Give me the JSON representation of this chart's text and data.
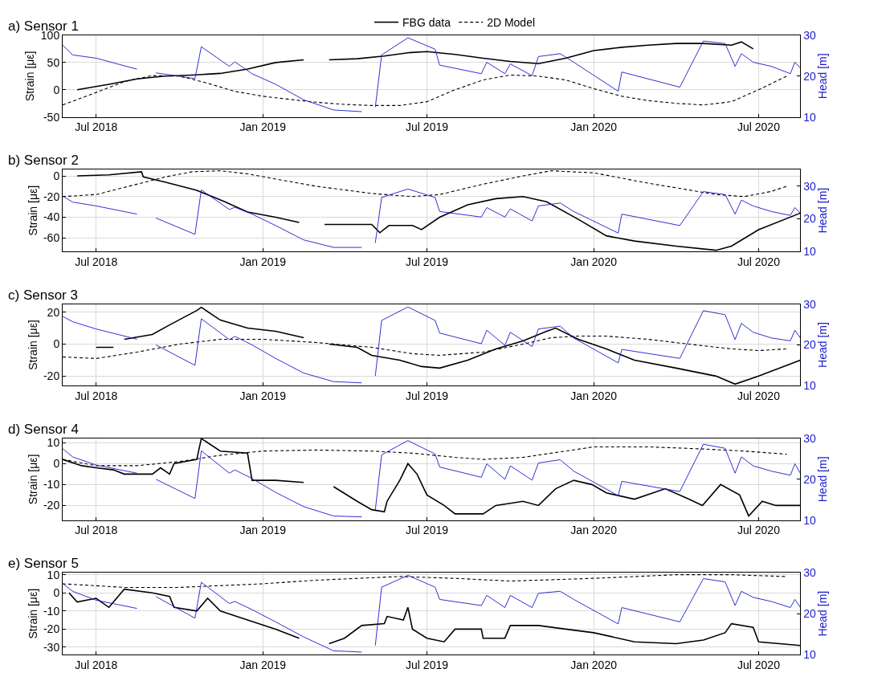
{
  "chart_data": [
    {
      "type": "line",
      "title": "a) Sensor 1",
      "ylabel": "Strain [με]",
      "y2label": "Head [m]",
      "legend": "top",
      "grid": true,
      "xlim": [
        "2018-05-25",
        "2020-08-16"
      ],
      "xticks": [
        {
          "value": "2018-07-01",
          "label": "Jul 2018"
        },
        {
          "value": "2019-01-01",
          "label": "Jan 2019"
        },
        {
          "value": "2019-07-01",
          "label": "Jul 2019"
        },
        {
          "value": "2020-01-01",
          "label": "Jan 2020"
        },
        {
          "value": "2020-07-01",
          "label": "Jul 2020"
        }
      ],
      "ylim": [
        -50,
        100
      ],
      "yticks": [
        -50,
        0,
        50,
        100
      ],
      "y2lim": [
        10,
        30
      ],
      "y2ticks": [
        10,
        20,
        30
      ],
      "series": [
        {
          "name": "FBG data",
          "color": "#000000",
          "line_style": "solid",
          "x": [
            "2018-06-10",
            "2018-07-15",
            "2018-08-15",
            "2018-09-15",
            "2018-10-15",
            "2018-11-15",
            "2018-12-15",
            "2019-01-15",
            "2019-02-15",
            "2019-03-01",
            "2019-03-15",
            "2019-04-15",
            "2019-05-15",
            "2019-06-10",
            "2019-07-01",
            "2019-08-01",
            "2019-09-01",
            "2019-10-01",
            "2019-11-01",
            "2019-12-01",
            "2020-01-01",
            "2020-02-01",
            "2020-03-01",
            "2020-04-01",
            "2020-05-01",
            "2020-06-01",
            "2020-06-12",
            "2020-06-25"
          ],
          "values": [
            0,
            10,
            20,
            25,
            27,
            30,
            38,
            50,
            55,
            null,
            55,
            57,
            62,
            68,
            70,
            65,
            58,
            52,
            48,
            58,
            72,
            78,
            82,
            85,
            85,
            82,
            88,
            75
          ]
        },
        {
          "name": "2D Model",
          "color": "#000000",
          "line_style": "dashed",
          "x": [
            "2018-05-25",
            "2018-07-01",
            "2018-08-01",
            "2018-09-01",
            "2018-10-01",
            "2018-11-01",
            "2018-12-01",
            "2019-01-01",
            "2019-02-01",
            "2019-03-01",
            "2019-04-01",
            "2019-05-01",
            "2019-06-01",
            "2019-07-01",
            "2019-08-01",
            "2019-09-01",
            "2019-10-01",
            "2019-11-01",
            "2019-12-01",
            "2020-01-01",
            "2020-02-01",
            "2020-03-01",
            "2020-04-01",
            "2020-05-01",
            "2020-06-01",
            "2020-07-01",
            "2020-08-01"
          ],
          "values": [
            -28,
            -5,
            15,
            26,
            25,
            12,
            -3,
            -12,
            -18,
            -23,
            -27,
            -29,
            -29,
            -22,
            0,
            18,
            27,
            25,
            18,
            2,
            -12,
            -20,
            -25,
            -28,
            -22,
            0,
            25
          ]
        },
        {
          "color": "#1a1acc",
          "line_style": "solid",
          "axis": "y2",
          "x": [
            "2018-05-25",
            "2018-06-05",
            "2018-07-01",
            "2018-08-15",
            "2018-08-25",
            "2018-09-05",
            "2018-10-18",
            "2018-10-25",
            "2018-11-25",
            "2018-12-01",
            "2018-12-20",
            "2019-01-15",
            "2019-02-15",
            "2019-03-20",
            "2019-04-20",
            "2019-05-01",
            "2019-05-05",
            "2019-05-12",
            "2019-06-10",
            "2019-07-10",
            "2019-07-15",
            "2019-08-30",
            "2019-09-05",
            "2019-09-25",
            "2019-10-01",
            "2019-10-25",
            "2019-11-01",
            "2019-11-25",
            "2019-12-10",
            "2020-01-28",
            "2020-02-01",
            "2020-04-05",
            "2020-05-01",
            "2020-05-25",
            "2020-06-05",
            "2020-06-12",
            "2020-06-25",
            "2020-07-15",
            "2020-08-05",
            "2020-08-10",
            "2020-08-16"
          ],
          "values": [
            27.6,
            25.2,
            24.4,
            21.7,
            null,
            20.8,
            19.4,
            27.2,
            22.4,
            23.5,
            20.6,
            18,
            14.2,
            11.7,
            11.3,
            null,
            12.4,
            25.2,
            29.4,
            26.6,
            22.7,
            20.6,
            23.4,
            20.6,
            23,
            20.1,
            24.8,
            25.5,
            23.4,
            16.3,
            21,
            17.3,
            28.6,
            28,
            22.4,
            25.5,
            23.4,
            22.4,
            20.6,
            23.4,
            22
          ]
        }
      ]
    },
    {
      "type": "line",
      "title": "b) Sensor 2",
      "ylabel": "Strain [με]",
      "y2label": "Head [m]",
      "grid": true,
      "xlim": [
        "2018-05-25",
        "2020-08-16"
      ],
      "xticks": [
        {
          "value": "2018-07-01",
          "label": "Jul 2018"
        },
        {
          "value": "2019-01-01",
          "label": "Jan 2019"
        },
        {
          "value": "2019-07-01",
          "label": "Jul 2019"
        },
        {
          "value": "2020-01-01",
          "label": "Jan 2020"
        },
        {
          "value": "2020-07-01",
          "label": "Jul 2020"
        }
      ],
      "ylim": [
        -73,
        6
      ],
      "yticks": [
        -60,
        -40,
        -20,
        0
      ],
      "y2lim": [
        10,
        35
      ],
      "y2ticks": [
        10,
        20,
        30
      ],
      "series": [
        {
          "color": "#000000",
          "line_style": "solid",
          "x": [
            "2018-06-10",
            "2018-07-15",
            "2018-08-20",
            "2018-08-22",
            "2018-09-15",
            "2018-10-20",
            "2018-11-20",
            "2018-12-15",
            "2019-01-15",
            "2019-02-10",
            "2019-02-25",
            "2019-03-10",
            "2019-05-01",
            "2019-05-10",
            "2019-05-20",
            "2019-06-15",
            "2019-06-25",
            "2019-07-15",
            "2019-08-15",
            "2019-09-15",
            "2019-10-15",
            "2019-11-10",
            "2019-12-15",
            "2020-01-15",
            "2020-02-15",
            "2020-04-01",
            "2020-05-15",
            "2020-06-01",
            "2020-07-01",
            "2020-08-16"
          ],
          "values": [
            0,
            1,
            4,
            -1,
            -6,
            -14,
            -25,
            -35,
            -40,
            -45,
            null,
            -47,
            -47,
            -55,
            -48,
            -48,
            -52,
            -40,
            -28,
            -22,
            -20,
            -25,
            -42,
            -58,
            -63,
            -68,
            -72,
            -68,
            -52,
            -36
          ]
        },
        {
          "color": "#000000",
          "line_style": "dashed",
          "x": [
            "2018-05-25",
            "2018-07-01",
            "2018-08-15",
            "2018-09-15",
            "2018-10-15",
            "2018-11-15",
            "2018-12-15",
            "2019-01-15",
            "2019-03-01",
            "2019-05-01",
            "2019-06-15",
            "2019-07-15",
            "2019-09-01",
            "2019-10-15",
            "2019-11-15",
            "2020-01-01",
            "2020-03-01",
            "2020-05-15",
            "2020-06-15",
            "2020-07-15",
            "2020-08-01"
          ],
          "values": [
            -20,
            -18,
            -8,
            -1,
            4,
            5,
            2,
            -3,
            -10,
            -17,
            -20,
            -18,
            -8,
            0,
            5,
            3,
            -7,
            -18,
            -20,
            -15,
            -10
          ]
        },
        {
          "color": "#1a1acc",
          "line_style": "solid",
          "axis": "y2",
          "x": [
            "2018-05-25",
            "2018-06-05",
            "2018-07-01",
            "2018-08-15",
            "2018-08-25",
            "2018-09-05",
            "2018-10-18",
            "2018-10-25",
            "2018-11-25",
            "2018-12-01",
            "2018-12-20",
            "2019-01-15",
            "2019-02-15",
            "2019-03-20",
            "2019-04-20",
            "2019-05-01",
            "2019-05-05",
            "2019-05-12",
            "2019-06-10",
            "2019-07-10",
            "2019-07-15",
            "2019-08-30",
            "2019-09-05",
            "2019-09-25",
            "2019-10-01",
            "2019-10-25",
            "2019-11-01",
            "2019-11-25",
            "2019-12-10",
            "2020-01-28",
            "2020-02-01",
            "2020-04-05",
            "2020-05-01",
            "2020-05-25",
            "2020-06-05",
            "2020-06-12",
            "2020-06-25",
            "2020-07-15",
            "2020-08-05",
            "2020-08-10",
            "2020-08-16"
          ],
          "values": [
            26.9,
            25.1,
            23.9,
            21.4,
            null,
            20.2,
            15.2,
            28.8,
            22.8,
            23.5,
            21.4,
            17.9,
            13.5,
            11.2,
            11.2,
            null,
            12.6,
            26.5,
            29.1,
            26.5,
            22.2,
            20.5,
            23.4,
            20.5,
            23,
            19.3,
            23.9,
            24.8,
            22.2,
            15.6,
            21.4,
            17.9,
            28.3,
            27.4,
            21.4,
            25.7,
            23.9,
            22.2,
            21,
            23.4,
            21.7
          ]
        }
      ]
    },
    {
      "type": "line",
      "title": "c) Sensor 3",
      "ylabel": "Strain [με]",
      "y2label": "Head [m]",
      "grid": true,
      "xlim": [
        "2018-05-25",
        "2020-08-16"
      ],
      "xticks": [
        {
          "value": "2018-07-01",
          "label": "Jul 2018"
        },
        {
          "value": "2019-01-01",
          "label": "Jan 2019"
        },
        {
          "value": "2019-07-01",
          "label": "Jul 2019"
        },
        {
          "value": "2020-01-01",
          "label": "Jan 2020"
        },
        {
          "value": "2020-07-01",
          "label": "Jul 2020"
        }
      ],
      "ylim": [
        -26,
        25
      ],
      "yticks": [
        -20,
        0,
        20
      ],
      "y2lim": [
        10,
        30
      ],
      "y2ticks": [
        10,
        20,
        30
      ],
      "series": [
        {
          "color": "#000000",
          "line_style": "solid",
          "x": [
            "2018-07-01",
            "2018-07-20",
            "2018-07-25",
            "2018-08-01",
            "2018-09-01",
            "2018-09-20",
            "2018-10-20",
            "2018-10-25",
            "2018-11-15",
            "2018-12-15",
            "2019-01-15",
            "2019-02-15",
            "2019-03-01",
            "2019-03-15",
            "2019-04-15",
            "2019-05-01",
            "2019-06-01",
            "2019-06-25",
            "2019-07-15",
            "2019-08-15",
            "2019-09-15",
            "2019-10-15",
            "2019-11-10",
            "2019-11-20",
            "2019-12-15",
            "2020-01-15",
            "2020-02-15",
            "2020-04-01",
            "2020-05-15",
            "2020-06-05",
            "2020-07-01",
            "2020-08-16"
          ],
          "values": [
            -2,
            -2,
            null,
            3,
            6,
            12,
            21,
            23,
            15,
            10,
            8,
            4,
            null,
            0,
            -2,
            -7,
            -10,
            -14,
            -15,
            -10,
            -3,
            2,
            8,
            10,
            3,
            -3,
            -10,
            -15,
            -20,
            -25,
            -20,
            -10
          ]
        },
        {
          "color": "#000000",
          "line_style": "dashed",
          "x": [
            "2018-05-25",
            "2018-07-01",
            "2018-08-15",
            "2018-10-01",
            "2018-11-15",
            "2019-01-01",
            "2019-03-01",
            "2019-05-01",
            "2019-06-15",
            "2019-07-15",
            "2019-09-01",
            "2019-10-15",
            "2019-11-15",
            "2019-12-15",
            "2020-01-15",
            "2020-03-01",
            "2020-04-15",
            "2020-06-01",
            "2020-07-01",
            "2020-08-01"
          ],
          "values": [
            -8,
            -9,
            -5,
            0,
            3,
            3,
            1,
            -2,
            -6,
            -7,
            -5,
            0,
            4,
            5,
            5,
            3,
            0,
            -3,
            -4,
            -3
          ]
        },
        {
          "color": "#1a1acc",
          "line_style": "solid",
          "axis": "y2",
          "x": [
            "2018-05-25",
            "2018-06-05",
            "2018-07-01",
            "2018-08-15",
            "2018-08-25",
            "2018-09-05",
            "2018-10-18",
            "2018-10-25",
            "2018-11-25",
            "2018-12-01",
            "2018-12-20",
            "2019-01-15",
            "2019-02-15",
            "2019-03-20",
            "2019-04-20",
            "2019-05-01",
            "2019-05-05",
            "2019-05-12",
            "2019-06-10",
            "2019-07-10",
            "2019-07-15",
            "2019-08-30",
            "2019-09-05",
            "2019-09-25",
            "2019-10-01",
            "2019-10-25",
            "2019-11-01",
            "2019-11-25",
            "2019-12-10",
            "2020-01-28",
            "2020-02-01",
            "2020-04-05",
            "2020-05-01",
            "2020-05-25",
            "2020-06-05",
            "2020-06-12",
            "2020-06-25",
            "2020-07-15",
            "2020-08-05",
            "2020-08-10",
            "2020-08-16"
          ],
          "values": [
            27,
            25.7,
            23.9,
            21.4,
            null,
            20,
            15,
            26.4,
            21.3,
            22.1,
            20,
            16.7,
            13.1,
            11,
            10.7,
            null,
            12.4,
            26,
            29.3,
            26,
            22.9,
            20.3,
            23.6,
            19.9,
            23.1,
            19.6,
            23.9,
            24.6,
            21.7,
            15.6,
            18.9,
            16.7,
            28.4,
            27.4,
            21.3,
            25.3,
            23.1,
            21.7,
            21,
            23.6,
            21.7
          ]
        }
      ]
    },
    {
      "type": "line",
      "title": "d) Sensor 4",
      "ylabel": "Strain [με]",
      "y2label": "Head [m]",
      "grid": true,
      "xlim": [
        "2018-05-25",
        "2020-08-16"
      ],
      "xticks": [
        {
          "value": "2018-07-01",
          "label": "Jul 2018"
        },
        {
          "value": "2019-01-01",
          "label": "Jan 2019"
        },
        {
          "value": "2019-07-01",
          "label": "Jul 2019"
        },
        {
          "value": "2020-01-01",
          "label": "Jan 2020"
        },
        {
          "value": "2020-07-01",
          "label": "Jul 2020"
        }
      ],
      "ylim": [
        -27,
        12
      ],
      "yticks": [
        -20,
        -10,
        0,
        10
      ],
      "y2lim": [
        10,
        30
      ],
      "y2ticks": [
        10,
        20,
        30
      ],
      "series": [
        {
          "color": "#000000",
          "line_style": "solid",
          "x": [
            "2018-05-25",
            "2018-06-15",
            "2018-07-01",
            "2018-07-20",
            "2018-08-01",
            "2018-09-01",
            "2018-09-10",
            "2018-09-20",
            "2018-09-25",
            "2018-10-20",
            "2018-10-25",
            "2018-11-15",
            "2018-12-15",
            "2018-12-20",
            "2019-01-15",
            "2019-02-15",
            "2019-03-01",
            "2019-03-20",
            "2019-04-15",
            "2019-05-01",
            "2019-05-15",
            "2019-05-18",
            "2019-06-01",
            "2019-06-10",
            "2019-06-20",
            "2019-07-01",
            "2019-07-20",
            "2019-08-01",
            "2019-09-01",
            "2019-09-15",
            "2019-10-15",
            "2019-11-01",
            "2019-11-20",
            "2019-12-10",
            "2019-12-30",
            "2020-01-15",
            "2020-02-15",
            "2020-03-20",
            "2020-04-15",
            "2020-04-30",
            "2020-05-20",
            "2020-06-10",
            "2020-06-20",
            "2020-07-05",
            "2020-07-20",
            "2020-08-16"
          ],
          "values": [
            2,
            -1,
            -2,
            -3,
            -5,
            -5,
            -2,
            -5,
            0,
            2,
            12,
            6,
            5,
            -8,
            -8,
            -9,
            null,
            -11,
            -18,
            -22,
            -23,
            -18,
            -8,
            0,
            -5,
            -15,
            -20,
            -24,
            -24,
            -20,
            -18,
            -20,
            -12,
            -8,
            -10,
            -14,
            -17,
            -12,
            -17,
            -20,
            -10,
            -15,
            -25,
            -18,
            -20,
            -20
          ]
        },
        {
          "color": "#000000",
          "line_style": "dashed",
          "x": [
            "2018-05-25",
            "2018-07-01",
            "2018-08-15",
            "2018-10-01",
            "2018-11-15",
            "2019-01-01",
            "2019-03-01",
            "2019-05-01",
            "2019-06-15",
            "2019-08-01",
            "2019-09-01",
            "2019-10-15",
            "2019-12-01",
            "2020-01-01",
            "2020-03-01",
            "2020-05-01",
            "2020-06-15",
            "2020-08-01"
          ],
          "values": [
            2,
            -1,
            -1,
            1,
            4,
            6,
            6.5,
            6,
            5,
            3,
            2,
            3,
            6,
            8,
            8,
            7,
            6,
            4.5
          ]
        },
        {
          "color": "#1a1acc",
          "line_style": "solid",
          "axis": "y2",
          "x": [
            "2018-05-25",
            "2018-06-05",
            "2018-07-01",
            "2018-08-15",
            "2018-08-25",
            "2018-09-05",
            "2018-10-18",
            "2018-10-25",
            "2018-11-25",
            "2018-12-01",
            "2018-12-20",
            "2019-01-15",
            "2019-02-15",
            "2019-03-20",
            "2019-04-20",
            "2019-05-01",
            "2019-05-05",
            "2019-05-12",
            "2019-06-10",
            "2019-07-10",
            "2019-07-15",
            "2019-08-30",
            "2019-09-05",
            "2019-09-25",
            "2019-10-01",
            "2019-10-25",
            "2019-11-01",
            "2019-11-25",
            "2019-12-10",
            "2020-01-28",
            "2020-02-01",
            "2020-04-05",
            "2020-05-01",
            "2020-05-25",
            "2020-06-05",
            "2020-06-12",
            "2020-06-25",
            "2020-07-15",
            "2020-08-05",
            "2020-08-10",
            "2020-08-16"
          ],
          "values": [
            27.5,
            25.5,
            23.5,
            21.5,
            null,
            20,
            15.3,
            27,
            21.5,
            22.3,
            20.2,
            16.8,
            13.3,
            11,
            10.8,
            null,
            12.5,
            26,
            29.5,
            26.2,
            23,
            20.5,
            23.8,
            20,
            23.3,
            19.8,
            24,
            24.8,
            22,
            16,
            19.5,
            17,
            28.6,
            27.6,
            21.5,
            25.5,
            23.3,
            22,
            21,
            23.8,
            21.5
          ]
        }
      ]
    },
    {
      "type": "line",
      "title": "e) Sensor 5",
      "ylabel": "Strain [με]",
      "y2label": "Head [m]",
      "grid": true,
      "xlim": [
        "2018-05-25",
        "2020-08-16"
      ],
      "xticks": [
        {
          "value": "2018-07-01",
          "label": "Jul 2018"
        },
        {
          "value": "2019-01-01",
          "label": "Jan 2019"
        },
        {
          "value": "2019-07-01",
          "label": "Jul 2019"
        },
        {
          "value": "2020-01-01",
          "label": "Jan 2020"
        },
        {
          "value": "2020-07-01",
          "label": "Jul 2020"
        }
      ],
      "ylim": [
        -34,
        11
      ],
      "yticks": [
        -30,
        -20,
        -10,
        0,
        10
      ],
      "y2lim": [
        10,
        30
      ],
      "y2ticks": [
        10,
        20,
        30
      ],
      "series": [
        {
          "color": "#000000",
          "line_style": "solid",
          "x": [
            "2018-06-01",
            "2018-06-10",
            "2018-07-01",
            "2018-07-15",
            "2018-08-01",
            "2018-09-01",
            "2018-09-20",
            "2018-09-25",
            "2018-10-20",
            "2018-11-01",
            "2018-11-15",
            "2018-12-15",
            "2019-01-15",
            "2019-02-10",
            "2019-02-25",
            "2019-03-15",
            "2019-04-01",
            "2019-04-20",
            "2019-05-15",
            "2019-05-18",
            "2019-06-05",
            "2019-06-10",
            "2019-06-15",
            "2019-07-01",
            "2019-07-20",
            "2019-08-01",
            "2019-08-30",
            "2019-09-01",
            "2019-09-25",
            "2019-10-01",
            "2019-11-01",
            "2019-12-01",
            "2020-01-01",
            "2020-02-15",
            "2020-04-01",
            "2020-05-01",
            "2020-05-25",
            "2020-06-01",
            "2020-06-25",
            "2020-07-01",
            "2020-08-16"
          ],
          "values": [
            0,
            -5,
            -3,
            -8,
            2,
            0,
            -2,
            -8,
            -10,
            -3,
            -10,
            -15,
            -20,
            -25,
            null,
            -28,
            -25,
            -18,
            -17,
            -13,
            -15,
            -8,
            -20,
            -25,
            -27,
            -20,
            -20,
            -25,
            -25,
            -18,
            -18,
            -20,
            -22,
            -27,
            -28,
            -26,
            -22,
            -17,
            -19,
            -27,
            -29
          ]
        },
        {
          "color": "#000000",
          "line_style": "dashed",
          "x": [
            "2018-05-25",
            "2018-08-01",
            "2018-10-01",
            "2019-01-01",
            "2019-03-01",
            "2019-06-01",
            "2019-08-01",
            "2019-10-01",
            "2020-01-01",
            "2020-04-01",
            "2020-06-01",
            "2020-07-01",
            "2020-08-01"
          ],
          "values": [
            5,
            3,
            3,
            5,
            7,
            9,
            8,
            6.5,
            8,
            10,
            10,
            9.5,
            9
          ]
        },
        {
          "color": "#1a1acc",
          "line_style": "solid",
          "axis": "y2",
          "x": [
            "2018-05-25",
            "2018-06-05",
            "2018-07-01",
            "2018-08-15",
            "2018-08-25",
            "2018-09-05",
            "2018-10-18",
            "2018-10-25",
            "2018-11-25",
            "2018-12-01",
            "2018-12-20",
            "2019-01-15",
            "2019-02-15",
            "2019-03-20",
            "2019-04-20",
            "2019-05-01",
            "2019-05-05",
            "2019-05-12",
            "2019-06-10",
            "2019-07-10",
            "2019-07-15",
            "2019-08-30",
            "2019-09-05",
            "2019-09-25",
            "2019-10-01",
            "2019-10-25",
            "2019-11-01",
            "2019-11-25",
            "2019-12-10",
            "2020-01-28",
            "2020-02-01",
            "2020-04-05",
            "2020-05-01",
            "2020-05-25",
            "2020-06-05",
            "2020-06-12",
            "2020-06-25",
            "2020-07-15",
            "2020-08-05",
            "2020-08-10",
            "2020-08-16"
          ],
          "values": [
            27.4,
            25.5,
            23.3,
            21.3,
            null,
            24.2,
            18.9,
            27.7,
            22.5,
            23,
            21,
            18,
            14.3,
            10.9,
            10.6,
            null,
            12.2,
            26.5,
            29.4,
            26.5,
            23.5,
            22,
            24.5,
            21.5,
            24.5,
            21.5,
            25,
            25.5,
            23.5,
            17.5,
            21.5,
            18,
            28.6,
            27.8,
            22,
            25.5,
            24,
            23,
            21.5,
            23.5,
            21.5
          ]
        }
      ]
    }
  ]
}
